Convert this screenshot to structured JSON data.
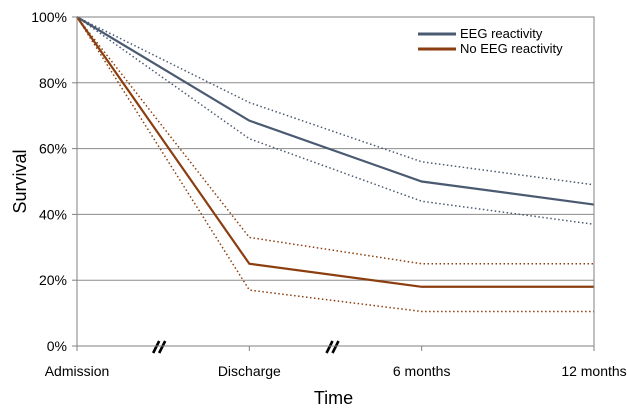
{
  "chart_data": {
    "type": "line",
    "categories": [
      "Admission",
      "Discharge",
      "6 months",
      "12 months"
    ],
    "y_ticks": [
      "0%",
      "20%",
      "40%",
      "60%",
      "80%",
      "100%"
    ],
    "ylim": [
      0,
      100
    ],
    "xlabel": "Time",
    "ylabel": "Survival",
    "grid": true,
    "legend_position": "top-right",
    "axis_breaks": [
      "between Admission and Discharge",
      "between Discharge and 6 months"
    ],
    "series": [
      {
        "name": "EEG reactivity",
        "color": "#4a5a70",
        "values": [
          100,
          68.5,
          50,
          43
        ],
        "ci_upper": [
          100,
          74,
          56,
          49
        ],
        "ci_lower": [
          100,
          63,
          44,
          37
        ]
      },
      {
        "name": "No EEG reactivity",
        "color": "#8b3e0f",
        "values": [
          100,
          25,
          18,
          18
        ],
        "ci_upper": [
          100,
          33,
          25,
          25
        ],
        "ci_lower": [
          100,
          17,
          10.5,
          10.5
        ]
      }
    ]
  }
}
